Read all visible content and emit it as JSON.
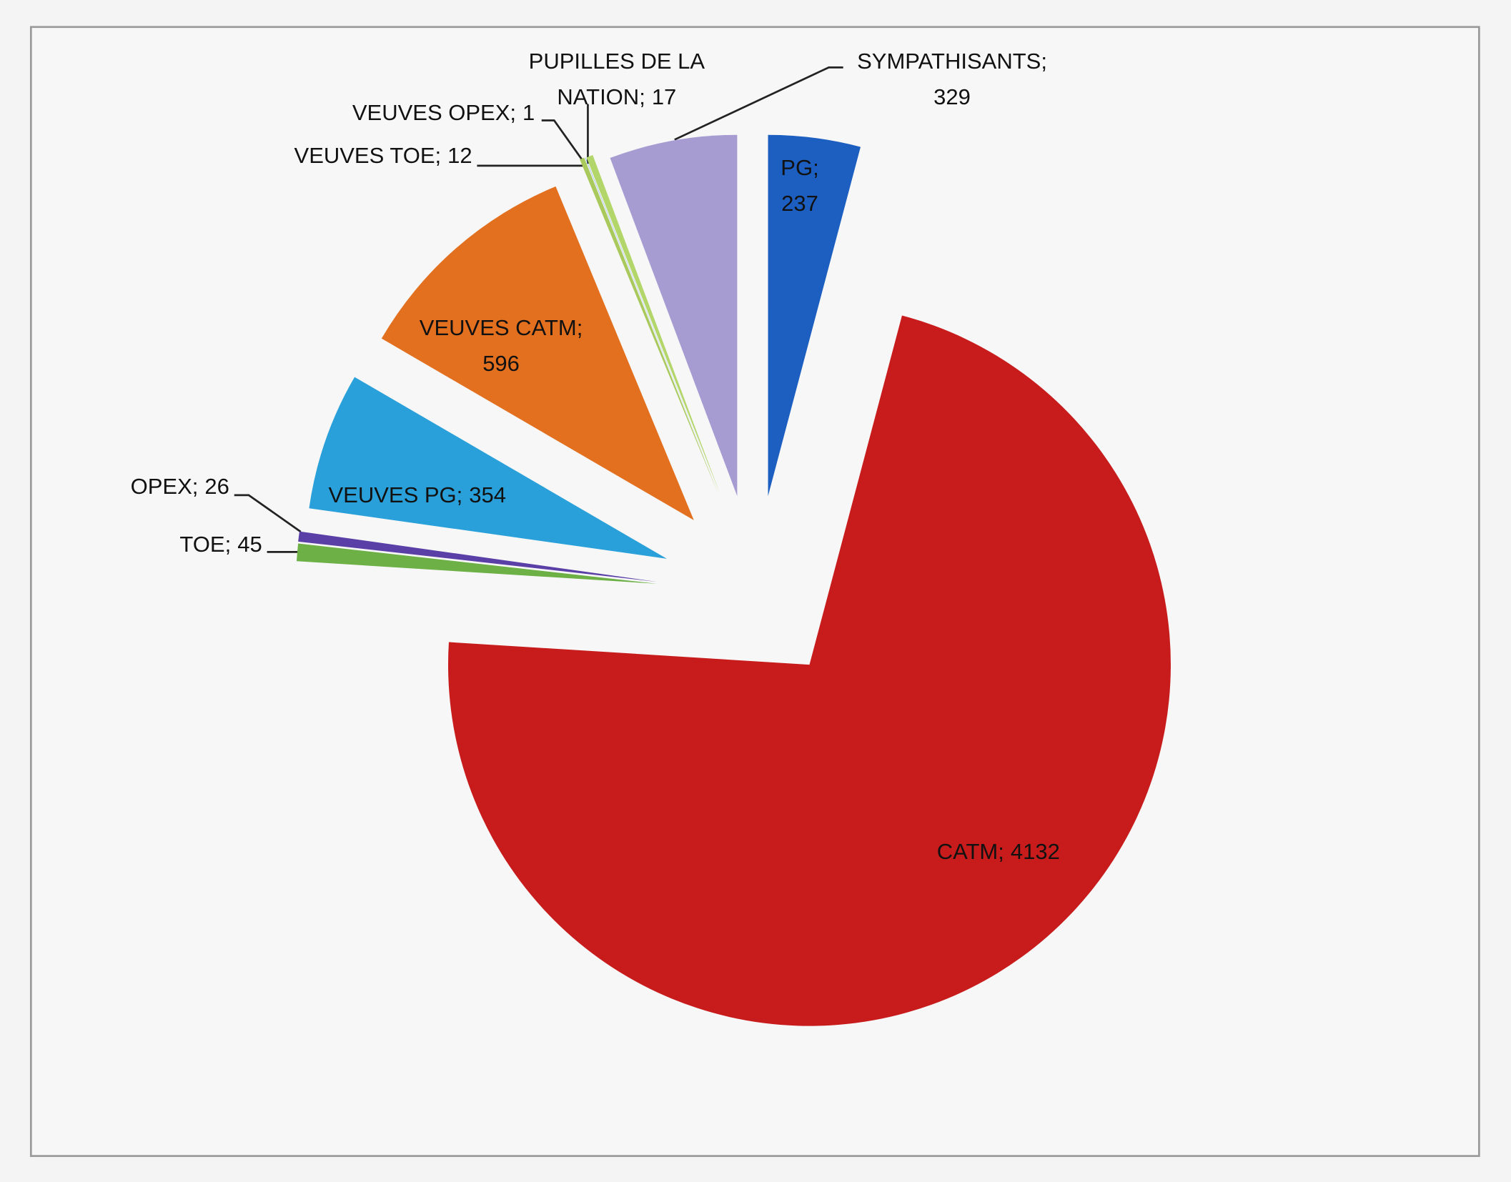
{
  "chart_data": {
    "type": "pie",
    "categories": [
      "PG",
      "CATM",
      "TOE",
      "OPEX",
      "VEUVES PG",
      "VEUVES CATM",
      "VEUVES TOE",
      "VEUVES OPEX",
      "PUPILLES DE LA NATION",
      "SYMPATHISANTS"
    ],
    "values": [
      237,
      4132,
      45,
      26,
      354,
      596,
      12,
      1,
      17,
      329
    ],
    "colors": [
      "#1d5fc0",
      "#c81c1c",
      "#6cb046",
      "#5a3fa6",
      "#2aa0da",
      "#e3701f",
      "#a9c95c",
      "#6ea2d9",
      "#b3d66a",
      "#a69cd2"
    ],
    "label_separator": ";"
  }
}
